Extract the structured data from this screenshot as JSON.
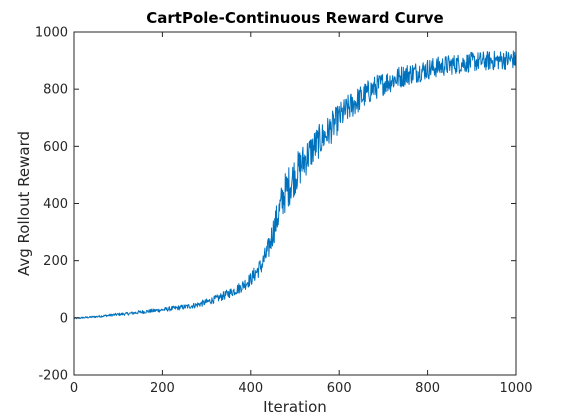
{
  "chart_data": {
    "type": "line",
    "title": "CartPole-Continuous Reward Curve",
    "xlabel": "Iteration",
    "ylabel": "Avg Rollout Reward",
    "xlim": [
      0,
      1000
    ],
    "ylim": [
      -200,
      1000
    ],
    "xticks": [
      0,
      200,
      400,
      600,
      800,
      1000
    ],
    "yticks": [
      -200,
      0,
      200,
      400,
      600,
      800,
      1000
    ],
    "grid": false,
    "line_color": "#0072BD",
    "series": [
      {
        "x": [
          0,
          25,
          50,
          75,
          100,
          125,
          150,
          175,
          200,
          225,
          250,
          275,
          300,
          325,
          350,
          375,
          400,
          425,
          440,
          450,
          460,
          475,
          500,
          525,
          550,
          575,
          600,
          625,
          650,
          675,
          700,
          725,
          750,
          775,
          800,
          825,
          850,
          875,
          900,
          925,
          950,
          975,
          1000
        ],
        "values": [
          -2,
          1,
          4,
          8,
          12,
          15,
          20,
          24,
          28,
          33,
          38,
          44,
          55,
          68,
          85,
          105,
          135,
          185,
          240,
          300,
          350,
          430,
          500,
          560,
          610,
          650,
          700,
          740,
          770,
          800,
          820,
          835,
          850,
          860,
          870,
          878,
          885,
          890,
          895,
          898,
          900,
          903,
          905
        ]
      }
    ]
  }
}
